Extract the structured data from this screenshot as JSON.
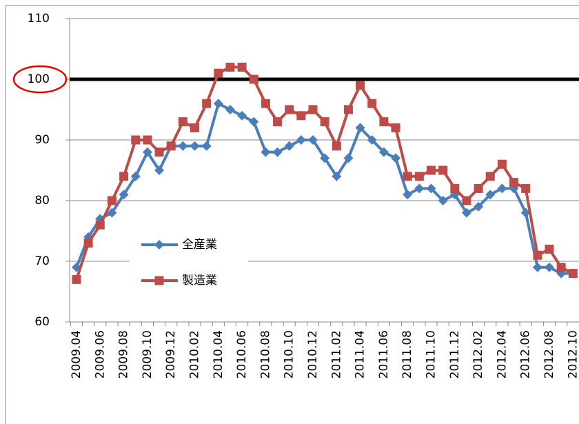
{
  "chart_data": {
    "type": "line",
    "categories": [
      "2009.04",
      null,
      "2009.06",
      null,
      "2009.08",
      null,
      "2009.10",
      null,
      "2009.12",
      null,
      "2010.02",
      null,
      "2010.04",
      null,
      "2010.06",
      null,
      "2010.08",
      null,
      "2010.10",
      null,
      "2010.12",
      null,
      "2011.02",
      null,
      "2011.04",
      null,
      "2011.06",
      null,
      "2011.08",
      null,
      "2011.10",
      null,
      "2011.12",
      null,
      "2012.02",
      null,
      "2012.04",
      null,
      "2012.06",
      null,
      "2012.08",
      null,
      "2012.10"
    ],
    "series": [
      {
        "name": "全産業",
        "color": "#4a7ebb",
        "marker": "diamond",
        "values": [
          69,
          74,
          77,
          78,
          81,
          84,
          88,
          85,
          89,
          89,
          89,
          89,
          96,
          95,
          94,
          93,
          88,
          88,
          89,
          90,
          90,
          87,
          84,
          87,
          92,
          90,
          88,
          87,
          81,
          82,
          82,
          80,
          81,
          78,
          79,
          81,
          82,
          82,
          78,
          69,
          69,
          68,
          68
        ]
      },
      {
        "name": "製造業",
        "color": "#be4b48",
        "marker": "square",
        "values": [
          67,
          73,
          76,
          80,
          84,
          90,
          90,
          88,
          89,
          93,
          92,
          96,
          101,
          102,
          102,
          100,
          96,
          93,
          95,
          94,
          95,
          93,
          89,
          95,
          99,
          96,
          93,
          92,
          84,
          84,
          85,
          85,
          82,
          80,
          82,
          84,
          86,
          83,
          82,
          71,
          72,
          69,
          68
        ]
      }
    ],
    "ylim": [
      60,
      110
    ],
    "yticks": [
      60,
      70,
      80,
      90,
      100,
      110
    ],
    "grid": true,
    "reference_line": 100,
    "legend": "left"
  }
}
